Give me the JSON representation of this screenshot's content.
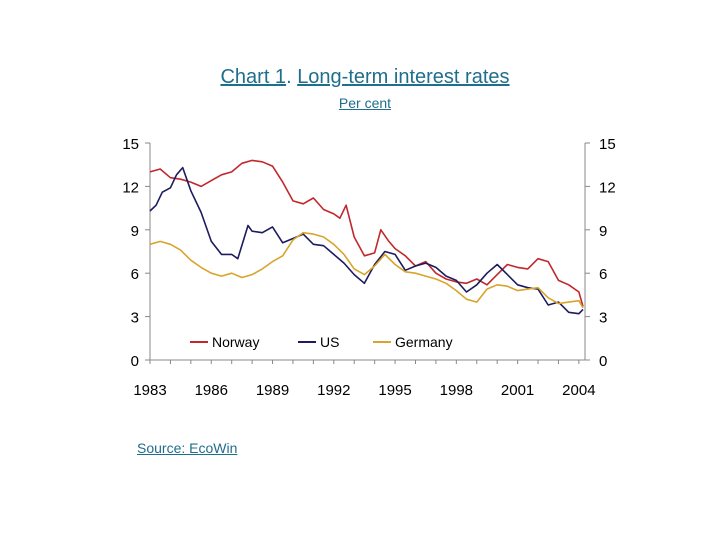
{
  "page": {
    "title_link": "Chart 1",
    "title_sep": ".",
    "title_text": "Long-term interest rates",
    "subtitle": "Per cent",
    "source": "Source: EcoWin"
  },
  "chart_data": {
    "type": "line",
    "title": "Chart 1. Long-term interest rates",
    "subtitle": "Per cent",
    "xlabel": "",
    "ylabel": "",
    "x_ticks": [
      "1983",
      "1986",
      "1989",
      "1992",
      "1995",
      "1998",
      "2001",
      "2004"
    ],
    "x_range": [
      1983.0,
      2004.3
    ],
    "ylim": [
      0,
      15
    ],
    "y_ticks": [
      0,
      3,
      6,
      9,
      12,
      15
    ],
    "grid": false,
    "legend_position": "bottom-inside",
    "series": [
      {
        "name": "Norway",
        "color": "#c0282d",
        "x": [
          1983.0,
          1983.5,
          1984.0,
          1984.5,
          1985.0,
          1985.5,
          1986.0,
          1986.5,
          1987.0,
          1987.5,
          1988.0,
          1988.5,
          1989.0,
          1989.5,
          1990.0,
          1990.5,
          1991.0,
          1991.5,
          1992.0,
          1992.3,
          1992.6,
          1993.0,
          1993.5,
          1994.0,
          1994.3,
          1994.7,
          1995.0,
          1995.5,
          1996.0,
          1996.5,
          1997.0,
          1997.5,
          1998.0,
          1998.5,
          1999.0,
          1999.5,
          2000.0,
          2000.5,
          2001.0,
          2001.5,
          2002.0,
          2002.5,
          2003.0,
          2003.5,
          2004.0,
          2004.2
        ],
        "values": [
          13.0,
          13.2,
          12.6,
          12.5,
          12.3,
          12.0,
          12.4,
          12.8,
          13.0,
          13.6,
          13.8,
          13.7,
          13.4,
          12.3,
          11.0,
          10.8,
          11.2,
          10.4,
          10.1,
          9.8,
          10.7,
          8.5,
          7.2,
          7.4,
          9.0,
          8.2,
          7.7,
          7.2,
          6.5,
          6.8,
          6.0,
          5.6,
          5.4,
          5.3,
          5.6,
          5.2,
          5.9,
          6.6,
          6.4,
          6.3,
          7.0,
          6.8,
          5.5,
          5.2,
          4.7,
          3.7
        ]
      },
      {
        "name": "US",
        "color": "#1c1c5e",
        "x": [
          1983.0,
          1983.3,
          1983.6,
          1984.0,
          1984.3,
          1984.6,
          1985.0,
          1985.5,
          1986.0,
          1986.5,
          1987.0,
          1987.3,
          1987.8,
          1988.0,
          1988.5,
          1989.0,
          1989.5,
          1990.0,
          1990.5,
          1991.0,
          1991.5,
          1992.0,
          1992.5,
          1993.0,
          1993.5,
          1994.0,
          1994.5,
          1995.0,
          1995.5,
          1996.0,
          1996.5,
          1997.0,
          1997.5,
          1998.0,
          1998.5,
          1999.0,
          1999.5,
          2000.0,
          2000.5,
          2001.0,
          2001.5,
          2002.0,
          2002.5,
          2003.0,
          2003.5,
          2004.0,
          2004.2
        ],
        "values": [
          10.3,
          10.7,
          11.6,
          11.9,
          12.8,
          13.3,
          11.7,
          10.2,
          8.2,
          7.3,
          7.3,
          7.0,
          9.3,
          8.9,
          8.8,
          9.2,
          8.1,
          8.4,
          8.7,
          8.0,
          7.9,
          7.3,
          6.7,
          5.9,
          5.3,
          6.6,
          7.5,
          7.3,
          6.2,
          6.5,
          6.7,
          6.4,
          5.8,
          5.5,
          4.7,
          5.2,
          6.0,
          6.6,
          5.9,
          5.2,
          5.0,
          4.9,
          3.8,
          4.0,
          3.3,
          3.2,
          3.5
        ]
      },
      {
        "name": "Germany",
        "color": "#d9a42b",
        "x": [
          1983.0,
          1983.5,
          1984.0,
          1984.5,
          1985.0,
          1985.5,
          1986.0,
          1986.5,
          1987.0,
          1987.5,
          1988.0,
          1988.5,
          1989.0,
          1989.5,
          1990.0,
          1990.5,
          1991.0,
          1991.5,
          1992.0,
          1992.5,
          1993.0,
          1993.5,
          1994.0,
          1994.5,
          1995.0,
          1995.5,
          1996.0,
          1996.5,
          1997.0,
          1997.5,
          1998.0,
          1998.5,
          1999.0,
          1999.5,
          2000.0,
          2000.5,
          2001.0,
          2001.5,
          2002.0,
          2002.5,
          2003.0,
          2003.5,
          2004.0,
          2004.2
        ],
        "values": [
          8.0,
          8.2,
          8.0,
          7.6,
          6.9,
          6.4,
          6.0,
          5.8,
          6.0,
          5.7,
          5.9,
          6.3,
          6.8,
          7.2,
          8.3,
          8.8,
          8.7,
          8.5,
          8.0,
          7.3,
          6.3,
          5.9,
          6.5,
          7.3,
          6.6,
          6.1,
          6.0,
          5.8,
          5.6,
          5.3,
          4.8,
          4.2,
          4.0,
          4.9,
          5.2,
          5.1,
          4.8,
          4.9,
          5.0,
          4.3,
          3.9,
          4.0,
          4.1,
          3.6
        ]
      }
    ]
  }
}
